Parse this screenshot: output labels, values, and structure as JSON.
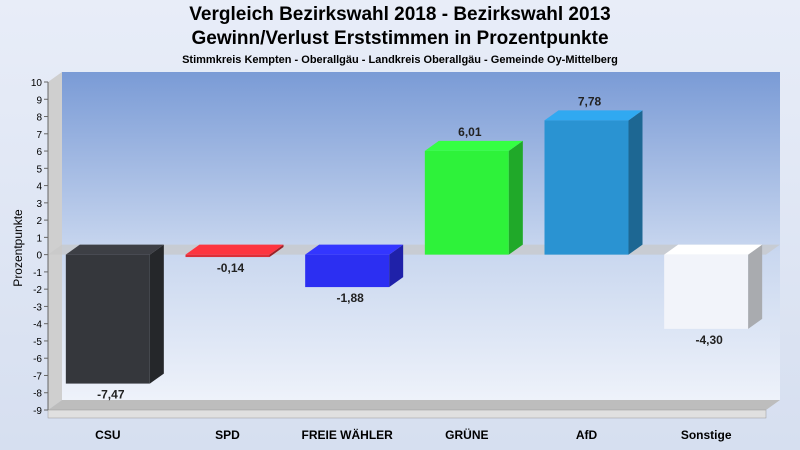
{
  "chart_data": {
    "type": "bar",
    "title": "Vergleich Bezirkswahl 2018 - Bezirkswahl 2013",
    "subtitle": "Gewinn/Verlust Erststimmen in Prozentpunkte",
    "caption": "Stimmkreis Kempten - Oberallgäu - Landkreis Oberallgäu - Gemeinde Oy-Mittelberg",
    "ylabel": "Prozentpunkte",
    "ylim": [
      -9,
      10
    ],
    "ytick_step": 1,
    "categories": [
      "CSU",
      "SPD",
      "FREIE WÄHLER",
      "GRÜNE",
      "AfD",
      "Sonstige"
    ],
    "values": [
      -7.47,
      -0.14,
      -1.88,
      6.01,
      7.78,
      -4.3
    ],
    "value_labels": [
      "-7,47",
      "-0,14",
      "-1,88",
      "6,01",
      "7,78",
      "-4,30"
    ],
    "colors": [
      "#35373c",
      "#dc2e38",
      "#2c2ff2",
      "#2ef23a",
      "#2a93d2",
      "#f2f4fa"
    ],
    "grid": false,
    "legend": "none"
  }
}
